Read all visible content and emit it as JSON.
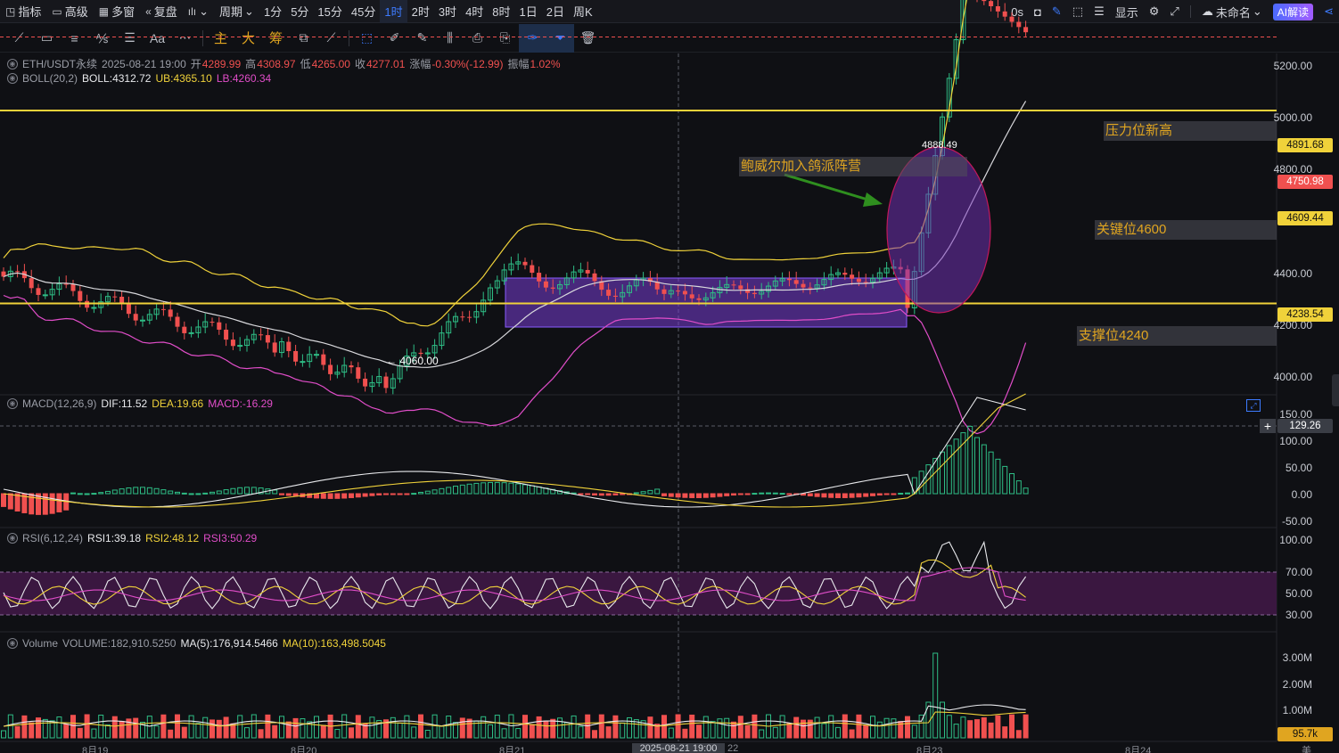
{
  "topbar": {
    "indicators_label": "指标",
    "advanced_label": "高级",
    "multi_window_label": "多窗",
    "replay_label": "复盘",
    "period_label": "周期",
    "timeframes": [
      "1分",
      "5分",
      "15分",
      "45分",
      "1时",
      "2时",
      "3时",
      "4时",
      "8时",
      "1日",
      "2日",
      "周K"
    ],
    "active_timeframe": "1时",
    "countdown": "0s",
    "display_label": "显示",
    "layout_name": "未命名",
    "ai_label": "AI解读"
  },
  "toolbar": {
    "font_tool_label": "Aa",
    "main_label": "主",
    "big_label": "大",
    "chips_label": "筹"
  },
  "symbol_info": {
    "symbol": "ETH/USDT永续",
    "datetime": "2025-08-21 19:00",
    "open_label": "开",
    "open": "4289.99",
    "high_label": "高",
    "high": "4308.97",
    "low_label": "低",
    "low": "4265.00",
    "close_label": "收",
    "close": "4277.01",
    "change_label": "涨幅",
    "change": "-0.30%(-12.99)",
    "amplitude_label": "振幅",
    "amplitude": "1.02%"
  },
  "boll": {
    "name": "BOLL(20,2)",
    "boll": "BOLL:4312.72",
    "ub": "UB:4365.10",
    "lb": "LB:4260.34"
  },
  "macd": {
    "name": "MACD(12,26,9)",
    "dif": "DIF:11.52",
    "dea": "DEA:19.66",
    "macd": "MACD:-16.29"
  },
  "rsi": {
    "name": "RSI(6,12,24)",
    "rsi1": "RSI1:39.18",
    "rsi2": "RSI2:48.12",
    "rsi3": "RSI3:50.29"
  },
  "volume": {
    "name": "Volume",
    "value": "VOLUME:182,910.5250",
    "ma5": "MA(5):176,914.5466",
    "ma10": "MA(10):163,498.5045"
  },
  "price_axis": [
    "5200.00",
    "5000.00",
    "4800.00",
    "4400.00",
    "4200.00",
    "4000.00"
  ],
  "price_tags": {
    "resistance": "4891.68",
    "current": "4750.98",
    "key": "4609.44",
    "support": "4238.54"
  },
  "macd_axis": [
    "150.00",
    "100.00",
    "50.00",
    "0.00",
    "-50.00"
  ],
  "macd_tag": "129.26",
  "rsi_axis": [
    "100.00",
    "70.00",
    "50.00",
    "30.00"
  ],
  "vol_axis": [
    "3.00M",
    "2.00M",
    "1.00M"
  ],
  "vol_tag": "95.7k",
  "annotations": {
    "resistance": "压力位新高",
    "powell": "鲍威尔加入鸽派阵营",
    "key": "关键位4600",
    "support": "支撑位4240",
    "low_marker": "← 4060.00",
    "high_marker": "4888.49"
  },
  "dates": {
    "d1": "8月19",
    "d2": "8月20",
    "d3": "8月21",
    "crosshair": "2025-08-21 19:00",
    "d3b": "22",
    "d4": "8月23",
    "d5": "8月24"
  },
  "corner_label": "美",
  "colors": {
    "up": "#2ebd85",
    "down": "#f0504f",
    "accent": "#3d7bff",
    "level": "#f0d23a",
    "boll_mid": "#d8d8dc",
    "boll_lb": "#e04dc8"
  },
  "chart_data": {
    "type": "candlestick",
    "symbol": "ETH/USDT永续",
    "interval": "1时",
    "price_range": [
      3930,
      5270
    ],
    "horizontal_levels": [
      4891.68,
      4609.44,
      4238.54
    ],
    "current_price": 4750.98,
    "rsi_bands": [
      30,
      70
    ]
  }
}
